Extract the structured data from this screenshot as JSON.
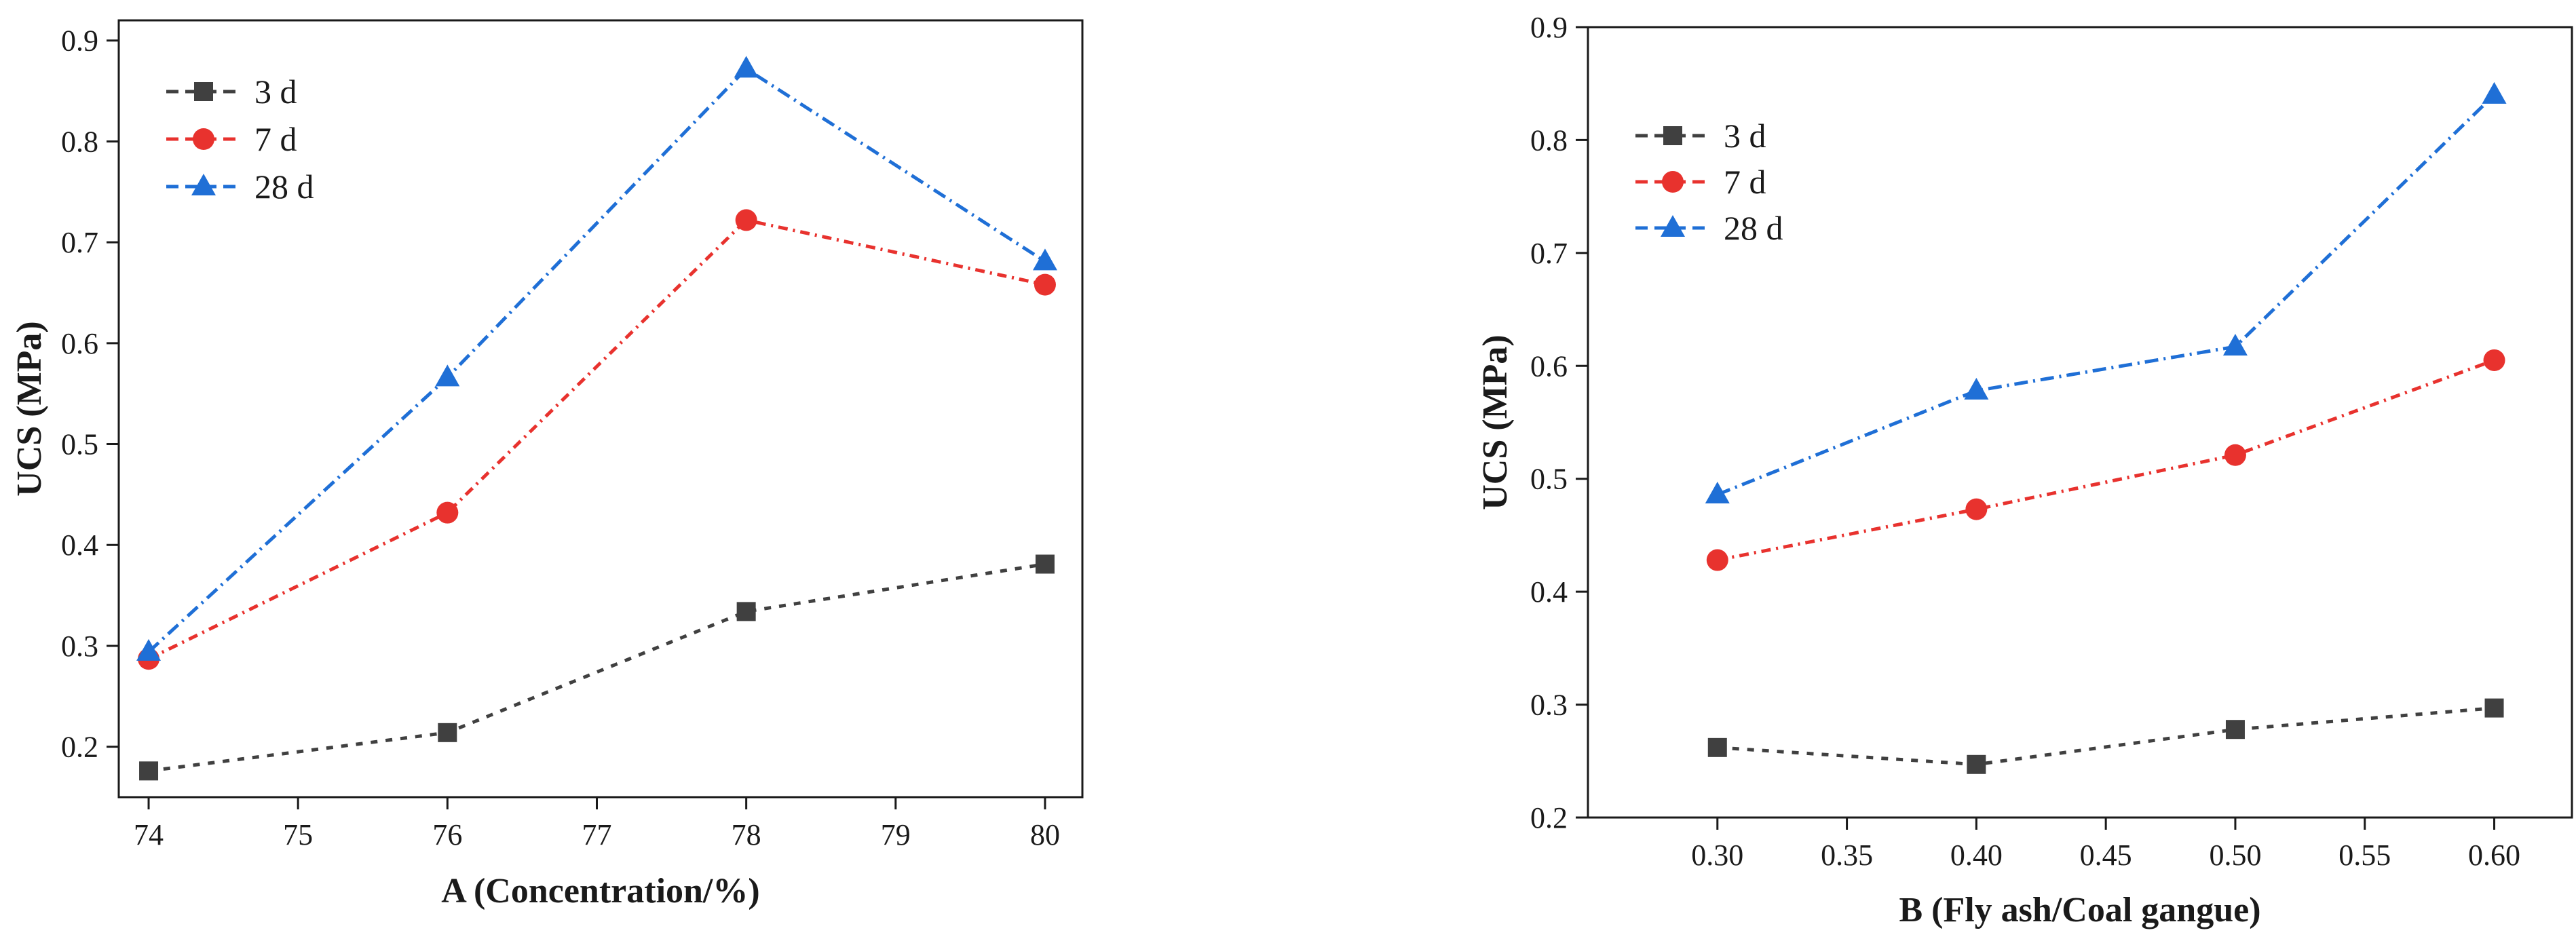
{
  "chart_data": [
    {
      "type": "line",
      "xlabel": "A (Concentration/%)",
      "ylabel": "UCS (MPa)",
      "xlim": [
        73.8,
        80.25
      ],
      "ylim": [
        0.15,
        0.92
      ],
      "x_ticks": [
        74,
        75,
        76,
        77,
        78,
        79,
        80
      ],
      "x_tick_labels": [
        "74",
        "75",
        "76",
        "77",
        "78",
        "79",
        "80"
      ],
      "y_ticks": [
        0.2,
        0.3,
        0.4,
        0.5,
        0.6,
        0.7,
        0.8,
        0.9
      ],
      "y_tick_labels": [
        "0.2",
        "0.3",
        "0.4",
        "0.5",
        "0.6",
        "0.7",
        "0.8",
        "0.9"
      ],
      "x": [
        74,
        76,
        78,
        80
      ],
      "legend_position": "top-left",
      "series": [
        {
          "name": "3 d",
          "values": [
            0.176,
            0.214,
            0.334,
            0.381
          ],
          "color": "#404040",
          "marker": "square"
        },
        {
          "name": "7 d",
          "values": [
            0.287,
            0.432,
            0.722,
            0.658
          ],
          "color": "#e8322e",
          "marker": "circle"
        },
        {
          "name": "28 d",
          "values": [
            0.294,
            0.566,
            0.872,
            0.681
          ],
          "color": "#1f6fd6",
          "marker": "triangle"
        }
      ]
    },
    {
      "type": "line",
      "xlabel": "B (Fly ash/Coal gangue)",
      "ylabel": "UCS (MPa)",
      "xlim": [
        0.25,
        0.63
      ],
      "ylim": [
        0.2,
        0.9
      ],
      "x_ticks": [
        0.3,
        0.35,
        0.4,
        0.45,
        0.5,
        0.55,
        0.6
      ],
      "x_tick_labels": [
        "0.30",
        "0.35",
        "0.40",
        "0.45",
        "0.50",
        "0.55",
        "0.60"
      ],
      "y_ticks": [
        0.2,
        0.3,
        0.4,
        0.5,
        0.6,
        0.7,
        0.8,
        0.9
      ],
      "y_tick_labels": [
        "0.2",
        "0.3",
        "0.4",
        "0.5",
        "0.6",
        "0.7",
        "0.8",
        "0.9"
      ],
      "x": [
        0.3,
        0.4,
        0.5,
        0.6
      ],
      "legend_position": "top-left",
      "series": [
        {
          "name": "3 d",
          "values": [
            0.262,
            0.247,
            0.278,
            0.297
          ],
          "color": "#404040",
          "marker": "square"
        },
        {
          "name": "7 d",
          "values": [
            0.428,
            0.473,
            0.521,
            0.605
          ],
          "color": "#e8322e",
          "marker": "circle"
        },
        {
          "name": "28 d",
          "values": [
            0.486,
            0.578,
            0.617,
            0.84
          ],
          "color": "#1f6fd6",
          "marker": "triangle"
        }
      ]
    }
  ]
}
